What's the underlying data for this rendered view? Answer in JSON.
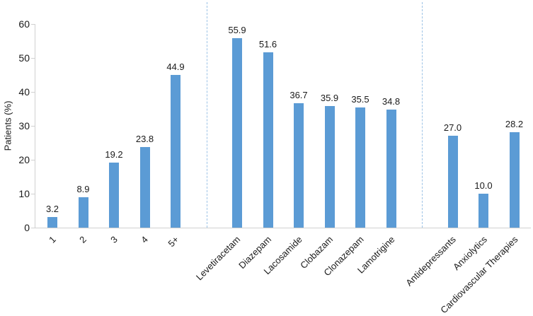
{
  "chart_data": {
    "type": "bar",
    "title": "",
    "xlabel": "",
    "ylabel": "Patients (%)",
    "ylim": [
      0,
      60
    ],
    "yticks": [
      "0",
      "10",
      "20",
      "30",
      "40",
      "50",
      "60"
    ],
    "grid": false,
    "legend": null,
    "value_labels_shown": true,
    "value_label_decimals": 1,
    "colors": {
      "bar": "#5b9bd5",
      "separator_dashed": "#9dc3e6",
      "axis": "#d0d0d0",
      "text": "#1a1a1a"
    },
    "groups": [
      {
        "categories": [
          "1",
          "2",
          "3",
          "4",
          "5+"
        ],
        "values": [
          3.2,
          8.9,
          19.2,
          23.8,
          44.9
        ]
      },
      {
        "categories": [
          "Levetiracetam",
          "Diazepam",
          "Lacosamide",
          "Clobazam",
          "Clonazepam",
          "Lamotrigine"
        ],
        "values": [
          55.9,
          51.6,
          36.7,
          35.9,
          35.5,
          34.8
        ]
      },
      {
        "categories": [
          "Antidepressants",
          "Anxiolytics",
          "Cardiovascular Therapies"
        ],
        "values": [
          27.0,
          10.0,
          28.2
        ]
      }
    ]
  }
}
